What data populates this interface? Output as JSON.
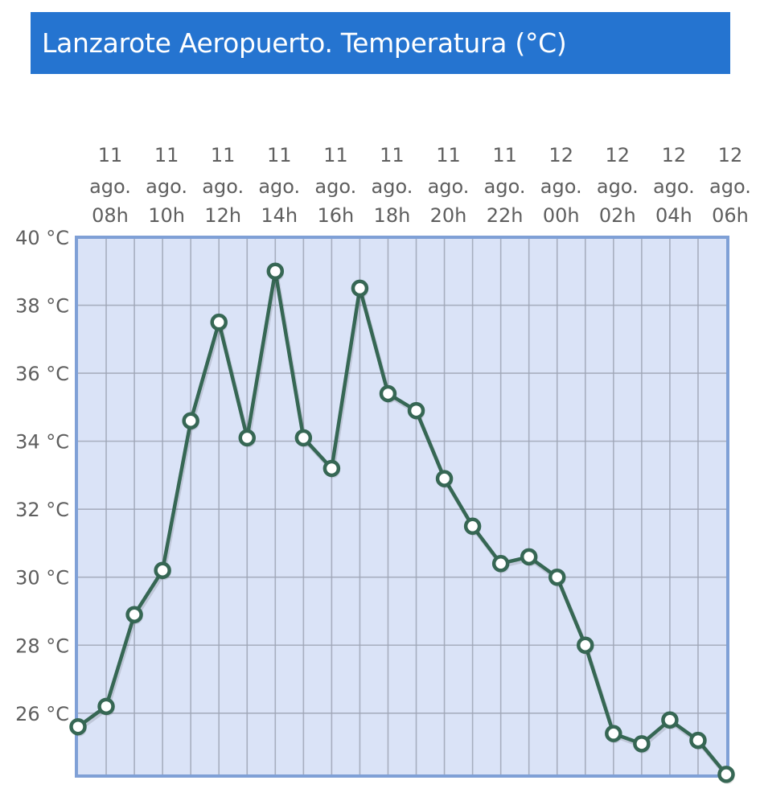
{
  "header": {
    "title": "Lanzarote Aeropuerto. Temperatura (°C)",
    "background_color": "#2574d0"
  },
  "colors": {
    "plot_background": "#dae3f7",
    "plot_border": "#7fa0d6",
    "grid": "#9ea5b5",
    "line": "#366754",
    "marker_fill": "#ffffff",
    "axis_text": "#5e5e5e"
  },
  "chart_data": {
    "type": "line",
    "title": "Lanzarote Aeropuerto. Temperatura (°C)",
    "xlabel": "",
    "ylabel": "",
    "x_tick_labels": [
      {
        "day": "11",
        "month": "ago.",
        "hour": "08h"
      },
      {
        "day": "11",
        "month": "ago.",
        "hour": "10h"
      },
      {
        "day": "11",
        "month": "ago.",
        "hour": "12h"
      },
      {
        "day": "11",
        "month": "ago.",
        "hour": "14h"
      },
      {
        "day": "11",
        "month": "ago.",
        "hour": "16h"
      },
      {
        "day": "11",
        "month": "ago.",
        "hour": "18h"
      },
      {
        "day": "11",
        "month": "ago.",
        "hour": "20h"
      },
      {
        "day": "11",
        "month": "ago.",
        "hour": "22h"
      },
      {
        "day": "12",
        "month": "ago.",
        "hour": "00h"
      },
      {
        "day": "12",
        "month": "ago.",
        "hour": "02h"
      },
      {
        "day": "12",
        "month": "ago.",
        "hour": "04h"
      },
      {
        "day": "12",
        "month": "ago.",
        "hour": "06h"
      }
    ],
    "y_ticks": [
      26,
      28,
      30,
      32,
      34,
      36,
      38,
      40
    ],
    "y_tick_labels": [
      "26 °C",
      "28 °C",
      "30 °C",
      "32 °C",
      "34 °C",
      "36 °C",
      "38 °C",
      "40 °C"
    ],
    "ylim": [
      24.15,
      40
    ],
    "x": [
      "11 08h",
      "11 09h",
      "11 10h",
      "11 11h",
      "11 12h",
      "11 13h",
      "11 14h",
      "11 15h",
      "11 16h",
      "11 17h",
      "11 18h",
      "11 19h",
      "11 20h",
      "11 21h",
      "11 22h",
      "11 23h",
      "12 00h",
      "12 01h",
      "12 02h",
      "12 03h",
      "12 04h",
      "12 05h",
      "12 06h",
      "12 07h"
    ],
    "series": [
      {
        "name": "Temperatura (°C)",
        "values": [
          25.6,
          26.2,
          28.9,
          30.2,
          34.6,
          37.5,
          34.1,
          39.0,
          34.1,
          33.2,
          38.5,
          35.4,
          34.9,
          32.9,
          31.5,
          30.4,
          30.6,
          30.0,
          28.0,
          25.4,
          25.1,
          25.8,
          25.2,
          24.2
        ]
      }
    ],
    "grid": true,
    "legend": "none"
  }
}
